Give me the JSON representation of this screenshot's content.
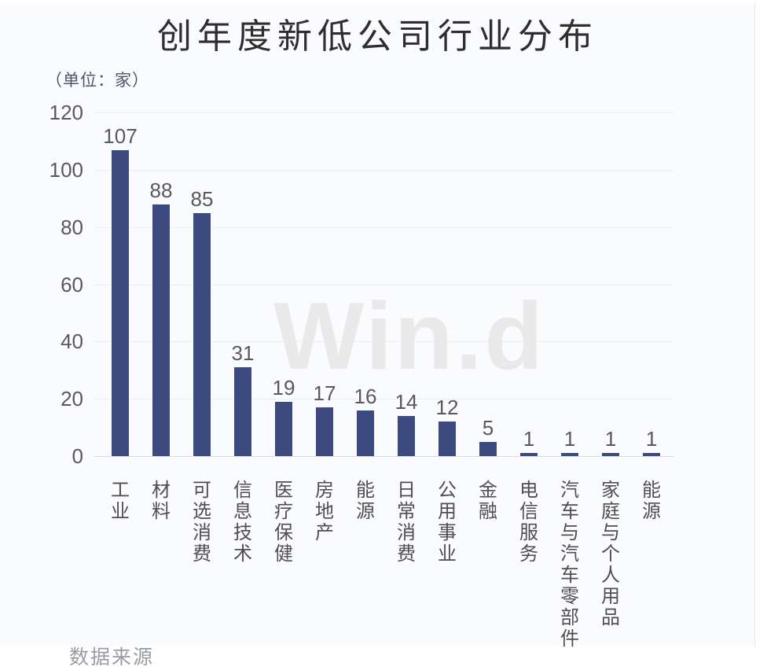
{
  "page": {
    "title": "创年度新低公司行业分布",
    "unit_label": "（单位：家）",
    "watermark": "Win.d",
    "footer_source": "数据来源",
    "colors": {
      "bar": "#3c4a80",
      "card_background": "#fafbfe",
      "gridline": "#eceef3",
      "watermark": "#e9e9e9",
      "text": "#595959"
    }
  },
  "chart_data": {
    "type": "bar",
    "title": "创年度新低公司行业分布",
    "unit": "家",
    "categories": [
      "工业",
      "材料",
      "可选消费",
      "信息技术",
      "医疗保健",
      "房地产",
      "能源",
      "日常消费",
      "公用事业",
      "金融",
      "电信服务",
      "汽车与汽车零部件",
      "家庭与个人用品",
      "能源"
    ],
    "values": [
      107,
      88,
      85,
      31,
      19,
      17,
      16,
      14,
      12,
      5,
      1,
      1,
      1,
      1
    ],
    "xlabel": "",
    "ylabel": "",
    "ylim": [
      0,
      120
    ],
    "yticks": [
      0,
      20,
      40,
      60,
      80,
      100,
      120
    ],
    "grid": "horizontal",
    "legend": "none",
    "value_labels": true,
    "bar_color": "#3c4a80",
    "watermark": "Win.d"
  }
}
